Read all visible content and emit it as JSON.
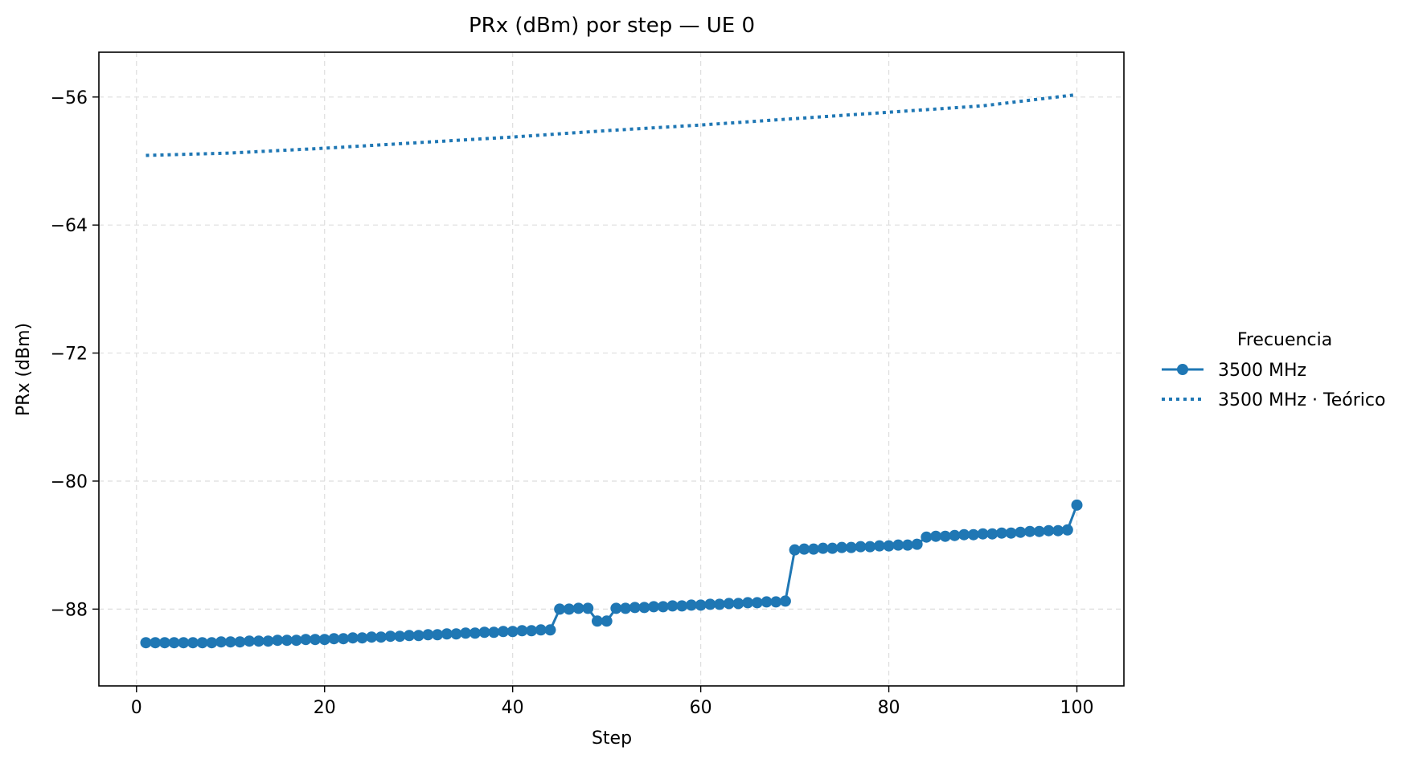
{
  "chart_data": {
    "type": "line",
    "title": "PRx (dBm) por step — UE 0",
    "xlabel": "Step",
    "ylabel": "PRx (dBm)",
    "xlim": [
      -4,
      105
    ],
    "ylim": [
      -92.8,
      -53.2
    ],
    "xticks": [
      0,
      20,
      40,
      60,
      80,
      100
    ],
    "yticks": [
      -56,
      -64,
      -72,
      -80,
      -88
    ],
    "ytick_labels": [
      "−56",
      "−64",
      "−72",
      "−80",
      "−88"
    ],
    "grid": true,
    "legend": {
      "title": "Frecuencia",
      "placement": "right outside",
      "entries": [
        "3500 MHz",
        "3500 MHz · Teórico"
      ]
    },
    "colors": {
      "series": "#1f77b4",
      "grid": "#dddddd"
    },
    "series": [
      {
        "name": "3500 MHz",
        "style": "solid-marker",
        "x": [
          1,
          2,
          3,
          4,
          5,
          6,
          7,
          8,
          9,
          10,
          11,
          12,
          13,
          14,
          15,
          16,
          17,
          18,
          19,
          20,
          21,
          22,
          23,
          24,
          25,
          26,
          27,
          28,
          29,
          30,
          31,
          32,
          33,
          34,
          35,
          36,
          37,
          38,
          39,
          40,
          41,
          42,
          43,
          44,
          45,
          46,
          47,
          48,
          49,
          50,
          51,
          52,
          53,
          54,
          55,
          56,
          57,
          58,
          59,
          60,
          61,
          62,
          63,
          64,
          65,
          66,
          67,
          68,
          69,
          70,
          71,
          72,
          73,
          74,
          75,
          76,
          77,
          78,
          79,
          80,
          81,
          82,
          83,
          84,
          85,
          86,
          87,
          88,
          89,
          90,
          91,
          92,
          93,
          94,
          95,
          96,
          97,
          98,
          99,
          100
        ],
        "y": [
          -90.1,
          -90.1,
          -90.1,
          -90.1,
          -90.1,
          -90.1,
          -90.1,
          -90.1,
          -90.05,
          -90.05,
          -90.05,
          -90.0,
          -90.0,
          -90.0,
          -89.95,
          -89.95,
          -89.95,
          -89.9,
          -89.9,
          -89.9,
          -89.85,
          -89.85,
          -89.8,
          -89.8,
          -89.75,
          -89.75,
          -89.7,
          -89.7,
          -89.65,
          -89.65,
          -89.6,
          -89.6,
          -89.55,
          -89.55,
          -89.5,
          -89.5,
          -89.45,
          -89.45,
          -89.4,
          -89.4,
          -89.35,
          -89.35,
          -89.3,
          -89.3,
          -88.0,
          -88.0,
          -87.95,
          -87.95,
          -88.75,
          -88.75,
          -87.95,
          -87.95,
          -87.9,
          -87.9,
          -87.85,
          -87.85,
          -87.8,
          -87.8,
          -87.75,
          -87.75,
          -87.7,
          -87.7,
          -87.65,
          -87.65,
          -87.6,
          -87.6,
          -87.55,
          -87.55,
          -87.5,
          -84.3,
          -84.25,
          -84.25,
          -84.2,
          -84.2,
          -84.15,
          -84.15,
          -84.1,
          -84.1,
          -84.05,
          -84.05,
          -84.0,
          -84.0,
          -83.95,
          -83.5,
          -83.45,
          -83.45,
          -83.4,
          -83.35,
          -83.35,
          -83.3,
          -83.3,
          -83.25,
          -83.25,
          -83.2,
          -83.15,
          -83.15,
          -83.1,
          -83.1,
          -83.05,
          -81.5
        ]
      },
      {
        "name": "3500 MHz · Teórico",
        "style": "dotted",
        "x": [
          1,
          10,
          20,
          30,
          40,
          50,
          60,
          70,
          80,
          90,
          100
        ],
        "y": [
          -59.65,
          -59.5,
          -59.2,
          -58.85,
          -58.5,
          -58.1,
          -57.75,
          -57.35,
          -56.95,
          -56.55,
          -55.85
        ]
      }
    ]
  }
}
